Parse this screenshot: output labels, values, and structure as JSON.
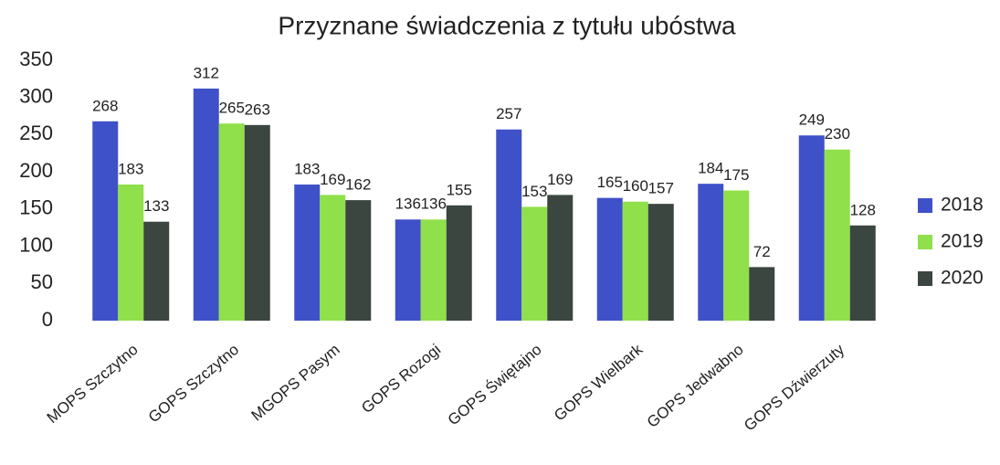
{
  "chart_data": {
    "type": "bar",
    "title": "Przyznane świadczenia z tytułu ubóstwa",
    "categories": [
      "MOPS Szczytno",
      "GOPS Szczytno",
      "MGOPS Pasym",
      "GOPS Rozogi",
      "GOPS Świętajno",
      "GOPS Wielbark",
      "GOPS Jedwabno",
      "GOPS Dźwierzuty"
    ],
    "series": [
      {
        "name": "2018",
        "color": "#3f51c8",
        "values": [
          268,
          312,
          183,
          136,
          257,
          165,
          184,
          249
        ]
      },
      {
        "name": "2019",
        "color": "#8fe04a",
        "values": [
          183,
          265,
          169,
          136,
          153,
          160,
          175,
          230
        ]
      },
      {
        "name": "2020",
        "color": "#3a463f",
        "values": [
          133,
          263,
          162,
          155,
          169,
          157,
          72,
          128
        ]
      }
    ],
    "ylim": [
      0,
      350
    ],
    "yticks": [
      0,
      50,
      100,
      150,
      200,
      250,
      300,
      350
    ],
    "grid": false,
    "legend": "right"
  }
}
